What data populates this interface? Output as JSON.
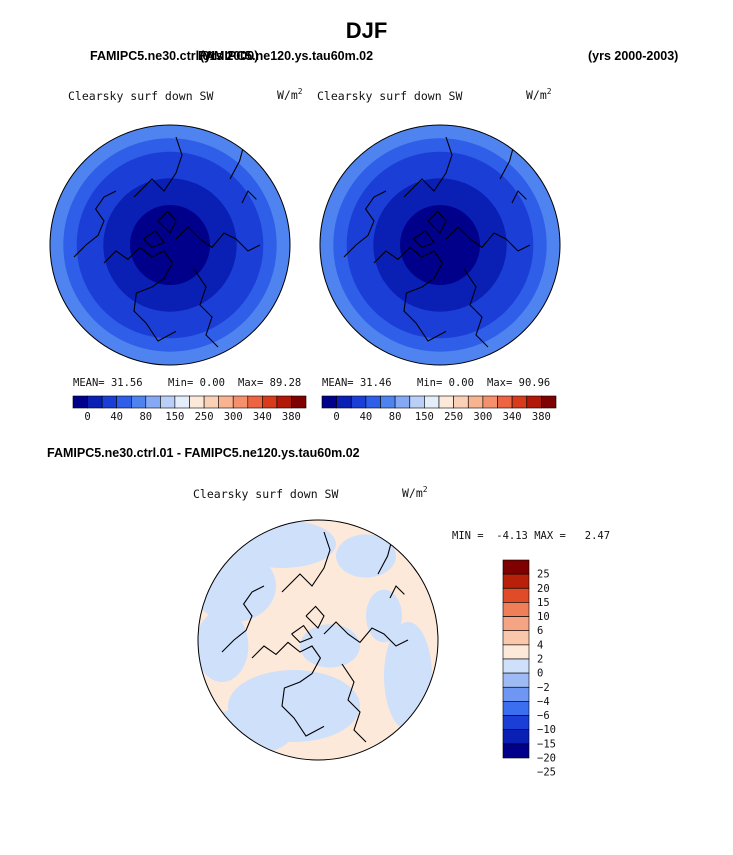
{
  "page_title": "DJF",
  "header": {
    "left_case_overlap": "FAMIPC5.ne30.ctrl.01",
    "left_years_overlap": "(yrs 2000)",
    "left_case_tail": "FAMIPC5.ne120.ys.tau60m.02",
    "right_years": "(yrs 2000-2003)"
  },
  "diff_header": "FAMIPC5.ne30.ctrl.01 - FAMIPC5.ne120.ys.tau60m.02",
  "colors": {
    "seq_palette": [
      "#00008a",
      "#0a1fb4",
      "#1b3fd6",
      "#2f5ee8",
      "#4f84f0",
      "#86a9f5",
      "#b9cff8",
      "#e4eefb",
      "#fde9da",
      "#fad1b6",
      "#f8b391",
      "#f5906d",
      "#ec6441",
      "#d83a1c",
      "#b21808",
      "#7f0000"
    ],
    "diff_palette": [
      "#00008a",
      "#0a1fb4",
      "#1b3fd6",
      "#3b6ff0",
      "#6e96f3",
      "#9fbbf6",
      "#cfe0fb",
      "#fde9da",
      "#f9c7a9",
      "#f5a583",
      "#f07e59",
      "#e04c28",
      "#b8200a",
      "#7f0000"
    ]
  },
  "chart_data": [
    {
      "type": "heatmap",
      "projection": "north-polar-stereographic",
      "variable": "Clearsky surf down SW",
      "units_base": "W/m",
      "units_exp": "2",
      "stats": {
        "mean_label": "MEAN=",
        "mean": "31.56",
        "min_label": "Min=",
        "min": "0.00",
        "max_label": "Max=",
        "max": "89.28"
      },
      "colorbar": {
        "orientation": "horizontal",
        "labels": [
          "0",
          "40",
          "80",
          "150",
          "250",
          "300",
          "340",
          "380"
        ]
      },
      "rings": [
        {
          "from_deg": 90,
          "to_deg": 75,
          "value_bin": 0
        },
        {
          "from_deg": 75,
          "to_deg": 65,
          "value_bin": 1
        },
        {
          "from_deg": 65,
          "to_deg": 55,
          "value_bin": 2
        },
        {
          "from_deg": 55,
          "to_deg": 50,
          "value_bin": 3
        },
        {
          "from_deg": 50,
          "to_deg": 45,
          "value_bin": 4
        }
      ]
    },
    {
      "type": "heatmap",
      "projection": "north-polar-stereographic",
      "variable": "Clearsky surf down SW",
      "units_base": "W/m",
      "units_exp": "2",
      "stats": {
        "mean_label": "MEAN=",
        "mean": "31.46",
        "min_label": "Min=",
        "min": "0.00",
        "max_label": "Max=",
        "max": "90.96"
      },
      "colorbar": {
        "orientation": "horizontal",
        "labels": [
          "0",
          "40",
          "80",
          "150",
          "250",
          "300",
          "340",
          "380"
        ]
      },
      "rings": [
        {
          "from_deg": 90,
          "to_deg": 75,
          "value_bin": 0
        },
        {
          "from_deg": 75,
          "to_deg": 65,
          "value_bin": 1
        },
        {
          "from_deg": 65,
          "to_deg": 55,
          "value_bin": 2
        },
        {
          "from_deg": 55,
          "to_deg": 50,
          "value_bin": 3
        },
        {
          "from_deg": 50,
          "to_deg": 45,
          "value_bin": 4
        }
      ]
    },
    {
      "type": "heatmap",
      "projection": "north-polar-stereographic",
      "variable": "Clearsky surf down SW",
      "units_base": "W/m",
      "units_exp": "2",
      "stats": {
        "min_label": "MIN =",
        "min": "-4.13",
        "max_label": "MAX =",
        "max": "2.47"
      },
      "colorbar": {
        "orientation": "vertical",
        "labels": [
          "25",
          "20",
          "15",
          "10",
          "6",
          "4",
          "2",
          "0",
          "−2",
          "−4",
          "−6",
          "−10",
          "−15",
          "−20",
          "−25"
        ]
      },
      "dominant_bins": {
        "positive": "0 to 2",
        "negative": "-2 to 0"
      }
    }
  ]
}
